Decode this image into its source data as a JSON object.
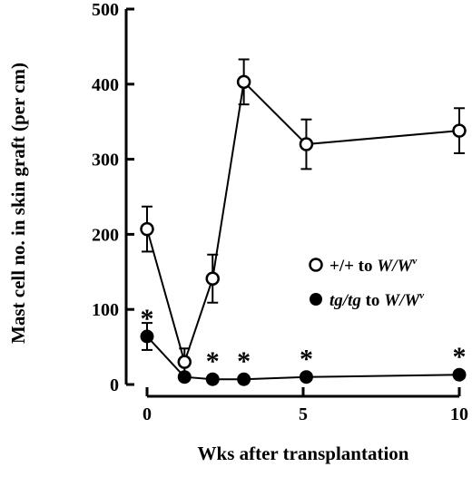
{
  "chart_data": {
    "type": "line",
    "title": "",
    "xlabel": "Wks after transplantation",
    "ylabel": "Mast cell no. in skin graft (per cm)",
    "xlim": [
      0,
      10
    ],
    "ylim": [
      0,
      500
    ],
    "x_ticks": [
      0,
      5,
      10
    ],
    "y_ticks": [
      0,
      100,
      200,
      300,
      400,
      500
    ],
    "x_tick_labels": [
      "0",
      "5",
      "10"
    ],
    "y_tick_labels": [
      "0",
      "100",
      "200",
      "300",
      "400",
      "500"
    ],
    "legend_placement": "right",
    "grid": false,
    "series": [
      {
        "name": "+/+ to W/Wv",
        "legend_parts": [
          "+/+ to ",
          "W/W",
          "v"
        ],
        "marker": "open-circle",
        "x": [
          0,
          1.2,
          2.1,
          3.1,
          5.1,
          10
        ],
        "y": [
          207,
          30,
          141,
          403,
          320,
          338
        ],
        "err": [
          30,
          18,
          32,
          30,
          33,
          30
        ]
      },
      {
        "name": "tg/tg to W/Wv",
        "legend_parts": [
          "tg/tg",
          " to ",
          "W/W",
          "v"
        ],
        "marker": "filled-circle",
        "x": [
          0,
          1.2,
          2.1,
          3.1,
          5.1,
          10
        ],
        "y": [
          64,
          10,
          7,
          7,
          10,
          13
        ],
        "err": [
          18,
          4,
          0,
          0,
          0,
          0
        ]
      }
    ],
    "annotations": [
      {
        "text": "*",
        "x": 0,
        "y": 64
      },
      {
        "text": "*",
        "x": 2.1,
        "y": 7
      },
      {
        "text": "*",
        "x": 3.1,
        "y": 7
      },
      {
        "text": "*",
        "x": 5.1,
        "y": 10
      },
      {
        "text": "*",
        "x": 10,
        "y": 13
      }
    ]
  }
}
